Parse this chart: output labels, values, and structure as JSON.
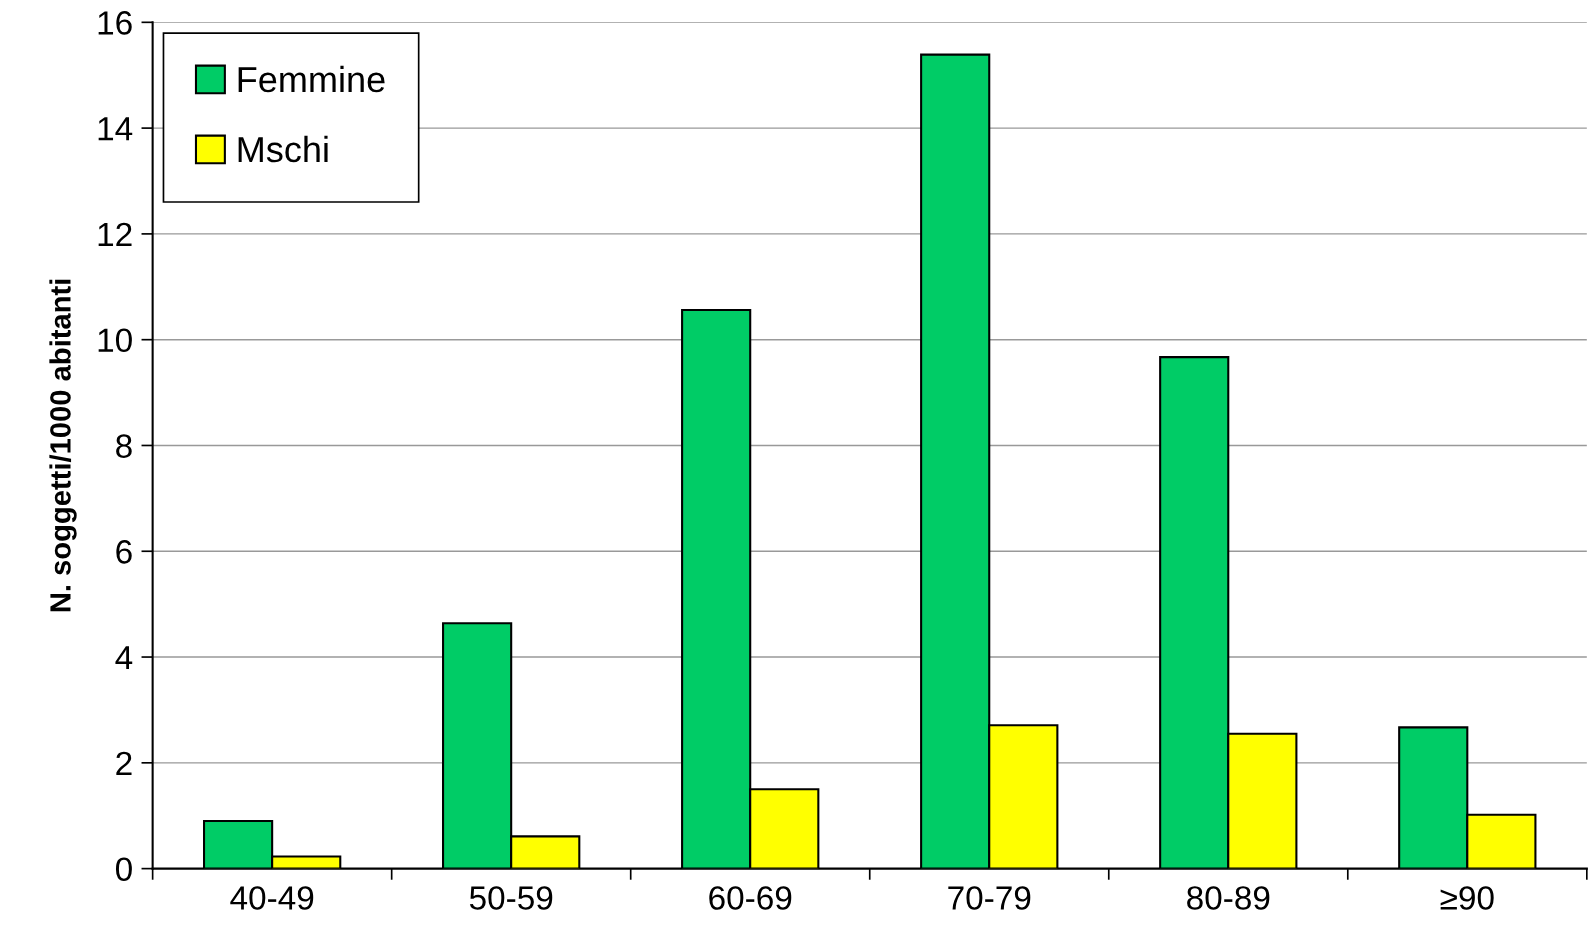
{
  "chart_data": {
    "type": "bar",
    "ylabel": "N. soggetti/1000 abitanti",
    "categories": [
      "40-49",
      "50-59",
      "60-69",
      "70-79",
      "80-89",
      "≥90"
    ],
    "series": [
      {
        "name": "Femmine",
        "color": "#00cc66",
        "values": [
          0.9,
          4.64,
          10.56,
          15.39,
          9.67,
          2.67
        ]
      },
      {
        "name": "Mschi",
        "color": "#ffff00",
        "values": [
          0.23,
          0.61,
          1.5,
          2.71,
          2.55,
          1.02
        ]
      }
    ],
    "ylim": [
      0,
      16
    ],
    "yticks": [
      0,
      2,
      4,
      6,
      8,
      10,
      12,
      14,
      16
    ],
    "grid": "y",
    "legend": "top left"
  }
}
